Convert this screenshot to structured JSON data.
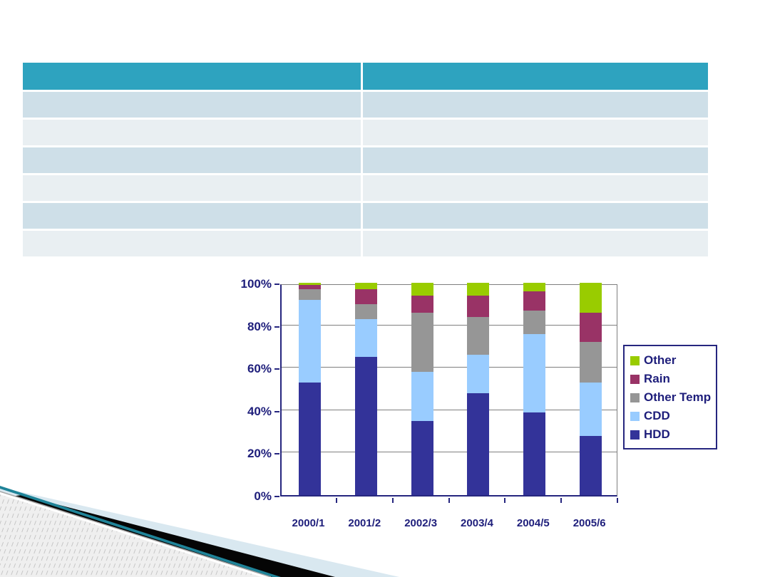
{
  "slide": {
    "background": "#ffffff"
  },
  "table": {
    "header_bg": "#2ea3bf",
    "row_bg_odd": "#cedfe8",
    "row_bg_even": "#e9eff2",
    "columns": [
      "",
      ""
    ],
    "rows": [
      [
        "",
        ""
      ],
      [
        "",
        ""
      ],
      [
        "",
        ""
      ],
      [
        "",
        ""
      ],
      [
        "",
        ""
      ],
      [
        "",
        ""
      ]
    ]
  },
  "chart_data": {
    "type": "bar",
    "stacked": true,
    "percent_stacked": true,
    "title": "",
    "xlabel": "",
    "ylabel": "",
    "ylim": [
      0,
      100
    ],
    "grid": true,
    "legend_position": "right",
    "categories": [
      "2000/1",
      "2001/2",
      "2002/3",
      "2003/4",
      "2004/5",
      "2005/6"
    ],
    "series": [
      {
        "name": "HDD",
        "color": "#333399",
        "values": [
          53,
          65,
          35,
          48,
          39,
          28
        ]
      },
      {
        "name": "CDD",
        "color": "#99ccff",
        "values": [
          39,
          18,
          23,
          18,
          37,
          25
        ]
      },
      {
        "name": "Other Temp",
        "color": "#969696",
        "values": [
          5,
          7,
          28,
          18,
          11,
          19
        ]
      },
      {
        "name": "Rain",
        "color": "#993366",
        "values": [
          2,
          7,
          8,
          10,
          9,
          14
        ]
      },
      {
        "name": "Other",
        "color": "#99cc00",
        "values": [
          1,
          3,
          6,
          6,
          4,
          14
        ]
      }
    ],
    "yticks": [
      "0%",
      "20%",
      "40%",
      "60%",
      "80%",
      "100%"
    ],
    "ytick_values": [
      0,
      20,
      40,
      60,
      80,
      100
    ],
    "axis_text_color": "#1e1e7b",
    "gridline_color": "#7f7f7f",
    "axis_line_color": "#26267f"
  },
  "decoration": {
    "pale_blue": "#d9e8f0",
    "black": "#050505",
    "teal_line": "#1f8398",
    "hatch_bg": "#efefef",
    "hatch_line": "#c4c4c4",
    "edge_gray": "#a6a6a6"
  }
}
